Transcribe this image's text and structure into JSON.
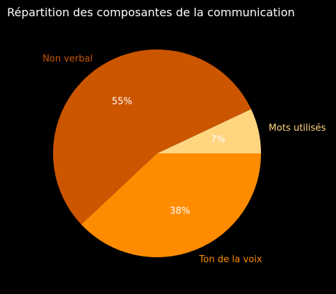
{
  "chart_data": {
    "type": "pie",
    "title": "Répartition des composantes de la communication",
    "slices": [
      {
        "label": "Mots utilisés",
        "value": 7,
        "pct_label": "7%",
        "color": "#ffd580",
        "label_color": "#ffd580"
      },
      {
        "label": "Non verbal",
        "value": 55,
        "pct_label": "55%",
        "color": "#cc5500",
        "label_color": "#cc5500"
      },
      {
        "label": "Ton de la voix",
        "value": 38,
        "pct_label": "38%",
        "color": "#ff8c00",
        "label_color": "#ff8c00"
      }
    ],
    "start_angle_deg": 0,
    "direction": "counterclockwise",
    "background": "#000000",
    "title_color": "#ffffff",
    "pct_color": "#ffffff"
  }
}
